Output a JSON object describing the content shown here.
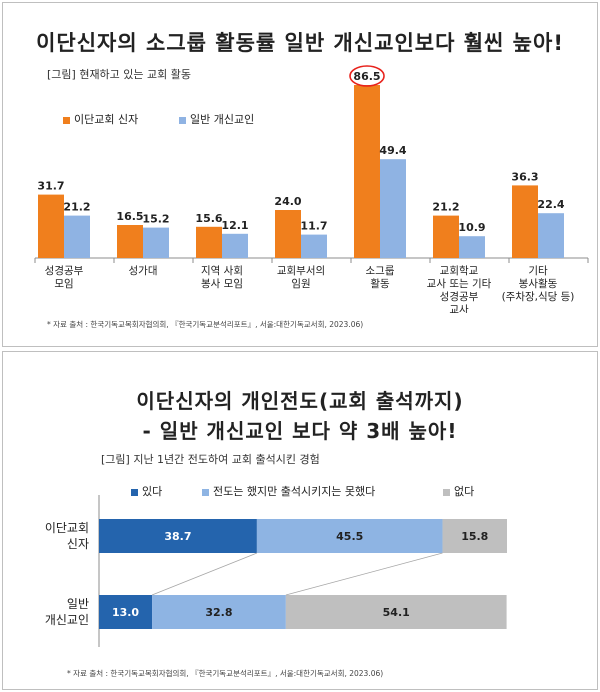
{
  "chart_data": [
    {
      "type": "bar",
      "title": "이단신자의 소그룹 활동률 일반 개신교인보다 훨씬 높아!",
      "subtitle": "[그림] 현재하고 있는 교회 활동",
      "categories": [
        [
          "성경공부",
          "모임"
        ],
        [
          "성가대"
        ],
        [
          "지역 사회",
          "봉사 모임"
        ],
        [
          "교회부서의",
          "임원"
        ],
        [
          "소그룹",
          "활동"
        ],
        [
          "교회학교",
          "교사 또는 기타",
          "성경공부",
          "교사"
        ],
        [
          "기타",
          "봉사활동",
          "(주차장,식당 등)"
        ]
      ],
      "series": [
        {
          "name": "이단교회 신자",
          "color": "#f07f1d",
          "values": [
            31.7,
            16.5,
            15.6,
            24.0,
            86.5,
            21.2,
            36.3
          ],
          "labels": [
            "31.7",
            "16.5",
            "15.6",
            "24.0",
            "86.5",
            "21.2",
            "36.3"
          ]
        },
        {
          "name": "일반 개신교인",
          "color": "#8fb3e3",
          "values": [
            21.2,
            15.2,
            12.1,
            11.7,
            49.4,
            10.9,
            22.4
          ],
          "labels": [
            "21.2",
            "15.2",
            "12.1",
            "11.7",
            "49.4",
            "10.9",
            "22.4"
          ]
        }
      ],
      "highlight": {
        "series": 0,
        "index": 4,
        "color": "#e8221c"
      },
      "ylim": [
        0,
        100
      ],
      "source": "* 자료 출처 : 한국기독교목회자협의회, 『한국기독교분석리포트』, 서울:대한기독교서회, 2023.06)"
    },
    {
      "type": "stacked-bar-horizontal",
      "title_lines": [
        "이단신자의 개인전도(교회 출석까지)",
        "- 일반 개신교인 보다 약 3배 높아!"
      ],
      "subtitle": "[그림] 지난 1년간 전도하여 교회 출석시킨 경험",
      "categories": [
        [
          "이단교회",
          "신자"
        ],
        [
          "일반",
          "개신교인"
        ]
      ],
      "series": [
        {
          "name": "있다",
          "color": "#2464ad",
          "label_color": "#ffffff",
          "values": [
            38.7,
            13.0
          ],
          "labels": [
            "38.7",
            "13.0"
          ]
        },
        {
          "name": "전도는 했지만 출석시키지는 못했다",
          "color": "#8eb4e3",
          "label_color": "#222222",
          "values": [
            45.5,
            32.8
          ],
          "labels": [
            "45.5",
            "32.8"
          ]
        },
        {
          "name": "없다",
          "color": "#bfbfbf",
          "label_color": "#222222",
          "values": [
            15.8,
            54.1
          ],
          "labels": [
            "15.8",
            "54.1"
          ]
        }
      ],
      "xlim": [
        0,
        100
      ],
      "source": "* 자료 출처 : 한국기독교목회자협의회, 『한국기독교분석리포트』, 서울:대한기독교서회, 2023.06)"
    }
  ]
}
